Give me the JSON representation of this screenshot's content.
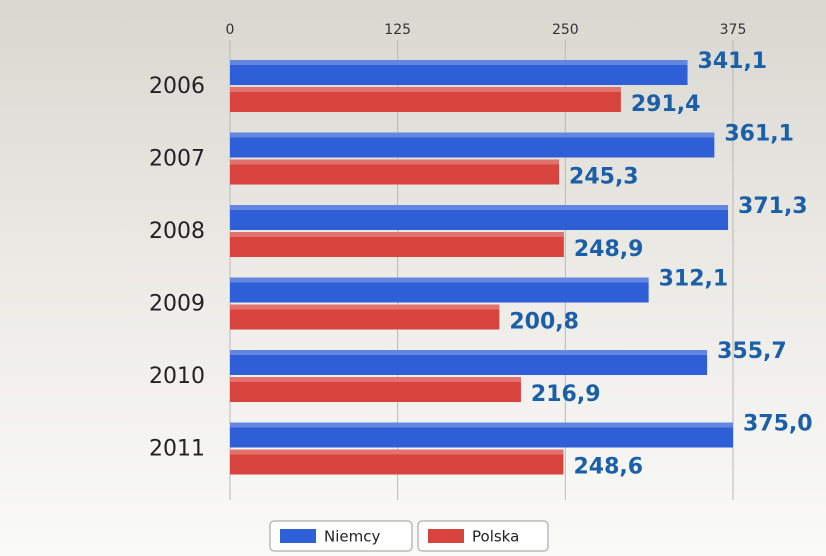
{
  "chart_data": {
    "type": "bar",
    "orientation": "horizontal",
    "categories": [
      "2006",
      "2007",
      "2008",
      "2009",
      "2010",
      "2011"
    ],
    "series": [
      {
        "name": "Niemcy",
        "color": "#2f5fd6",
        "values": [
          341.1,
          361.1,
          371.3,
          312.1,
          355.7,
          375.0
        ],
        "value_labels": [
          "341,1",
          "361,1",
          "371,3",
          "312,1",
          "355,7",
          "375,0"
        ]
      },
      {
        "name": "Polska",
        "color": "#d8433d",
        "values": [
          291.4,
          245.3,
          248.9,
          200.8,
          216.9,
          248.6
        ],
        "value_labels": [
          "291,4",
          "245,3",
          "248,9",
          "200,8",
          "216,9",
          "248,6"
        ]
      }
    ],
    "xlim": [
      0,
      375
    ],
    "xticks": [
      0,
      125,
      250,
      375
    ],
    "grid": true,
    "legend": "bottom"
  }
}
